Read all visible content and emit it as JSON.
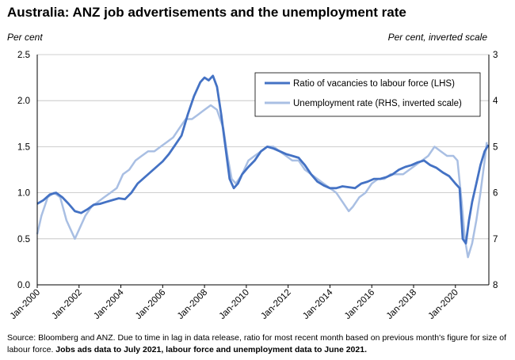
{
  "title": "Australia: ANZ job advertisements and the unemployment rate",
  "footnote": {
    "plain": "Source: Bloomberg and ANZ.  Due to time in lag in data release, ratio for most recent month based on previous month's figure for size of labour force. ",
    "bold": "Jobs ads data to July 2021, labour force and unemployment data to June 2021."
  },
  "chart_data": {
    "type": "line",
    "left_axis": {
      "unit_label": "Per cent",
      "min": 0.0,
      "max": 2.5,
      "ticks": [
        "0.0",
        "0.5",
        "1.0",
        "1.5",
        "2.0",
        "2.5"
      ]
    },
    "right_axis": {
      "unit_label": "Per cent, inverted scale",
      "min": 3,
      "max": 8,
      "inverted": true,
      "ticks": [
        "3",
        "4",
        "5",
        "6",
        "7",
        "8"
      ]
    },
    "x_axis": {
      "ticks": [
        "Jan-2000",
        "Jan-2002",
        "Jan-2004",
        "Jan-2006",
        "Jan-2008",
        "Jan-2010",
        "Jan-2012",
        "Jan-2014",
        "Jan-2016",
        "Jan-2018",
        "Jan-2020"
      ],
      "start_year": 2000,
      "end_year": 2021.6
    },
    "grid": "horizontal",
    "legend_position": "top-right",
    "colors": {
      "vacancies": "#4472c4",
      "unemployment": "#a9bfe3"
    },
    "series": [
      {
        "name": "Ratio of vacancies to labour force (LHS)",
        "axis": "left",
        "x": [
          2000.0,
          2000.3,
          2000.6,
          2000.9,
          2001.2,
          2001.5,
          2001.8,
          2002.1,
          2002.4,
          2002.7,
          2003.0,
          2003.3,
          2003.6,
          2003.9,
          2004.2,
          2004.5,
          2004.8,
          2005.1,
          2005.4,
          2005.7,
          2006.0,
          2006.3,
          2006.6,
          2006.9,
          2007.2,
          2007.5,
          2007.8,
          2008.0,
          2008.2,
          2008.4,
          2008.6,
          2008.8,
          2009.0,
          2009.2,
          2009.4,
          2009.6,
          2009.8,
          2010.1,
          2010.4,
          2010.7,
          2011.0,
          2011.3,
          2011.6,
          2011.9,
          2012.2,
          2012.5,
          2012.8,
          2013.1,
          2013.4,
          2013.7,
          2014.0,
          2014.3,
          2014.6,
          2014.9,
          2015.2,
          2015.5,
          2015.8,
          2016.1,
          2016.4,
          2016.7,
          2017.0,
          2017.3,
          2017.6,
          2017.9,
          2018.2,
          2018.5,
          2018.8,
          2019.1,
          2019.4,
          2019.7,
          2020.0,
          2020.2,
          2020.35,
          2020.5,
          2020.65,
          2020.8,
          2021.0,
          2021.2,
          2021.4,
          2021.58
        ],
        "y": [
          0.88,
          0.92,
          0.98,
          1.0,
          0.95,
          0.88,
          0.8,
          0.78,
          0.82,
          0.87,
          0.88,
          0.9,
          0.92,
          0.94,
          0.93,
          1.0,
          1.1,
          1.16,
          1.22,
          1.28,
          1.34,
          1.42,
          1.52,
          1.62,
          1.85,
          2.05,
          2.2,
          2.25,
          2.22,
          2.27,
          2.15,
          1.85,
          1.5,
          1.15,
          1.05,
          1.1,
          1.2,
          1.28,
          1.35,
          1.45,
          1.5,
          1.48,
          1.45,
          1.42,
          1.4,
          1.38,
          1.3,
          1.2,
          1.12,
          1.08,
          1.05,
          1.05,
          1.07,
          1.06,
          1.05,
          1.1,
          1.12,
          1.15,
          1.15,
          1.17,
          1.2,
          1.25,
          1.28,
          1.3,
          1.33,
          1.35,
          1.3,
          1.27,
          1.22,
          1.18,
          1.1,
          1.05,
          0.5,
          0.45,
          0.7,
          0.9,
          1.1,
          1.3,
          1.45,
          1.52
        ]
      },
      {
        "name": "Unemployment rate (RHS, inverted scale)",
        "axis": "right",
        "x": [
          2000.0,
          2000.2,
          2000.5,
          2000.8,
          2001.1,
          2001.4,
          2001.6,
          2001.8,
          2002.0,
          2002.3,
          2002.6,
          2002.9,
          2003.2,
          2003.5,
          2003.8,
          2004.1,
          2004.4,
          2004.7,
          2005.0,
          2005.3,
          2005.6,
          2005.9,
          2006.2,
          2006.5,
          2006.8,
          2007.1,
          2007.4,
          2007.7,
          2008.0,
          2008.3,
          2008.6,
          2008.9,
          2009.1,
          2009.3,
          2009.5,
          2009.8,
          2010.1,
          2010.4,
          2010.7,
          2011.0,
          2011.3,
          2011.6,
          2011.9,
          2012.2,
          2012.5,
          2012.8,
          2013.1,
          2013.4,
          2013.7,
          2014.0,
          2014.3,
          2014.6,
          2014.9,
          2015.1,
          2015.4,
          2015.7,
          2016.0,
          2016.3,
          2016.6,
          2016.9,
          2017.2,
          2017.5,
          2017.8,
          2018.1,
          2018.4,
          2018.7,
          2019.0,
          2019.3,
          2019.6,
          2019.9,
          2020.1,
          2020.3,
          2020.45,
          2020.6,
          2020.8,
          2021.0,
          2021.2,
          2021.4,
          2021.5
        ],
        "y": [
          6.9,
          6.5,
          6.1,
          6.0,
          6.1,
          6.6,
          6.8,
          7.0,
          6.8,
          6.5,
          6.3,
          6.2,
          6.1,
          6.0,
          5.9,
          5.6,
          5.5,
          5.3,
          5.2,
          5.1,
          5.1,
          5.0,
          4.9,
          4.8,
          4.6,
          4.4,
          4.4,
          4.3,
          4.2,
          4.1,
          4.2,
          4.6,
          5.2,
          5.7,
          5.8,
          5.6,
          5.3,
          5.2,
          5.1,
          5.0,
          5.0,
          5.1,
          5.2,
          5.3,
          5.3,
          5.5,
          5.6,
          5.7,
          5.8,
          5.9,
          6.0,
          6.2,
          6.4,
          6.3,
          6.1,
          6.0,
          5.8,
          5.7,
          5.7,
          5.6,
          5.6,
          5.6,
          5.5,
          5.4,
          5.3,
          5.2,
          5.0,
          5.1,
          5.2,
          5.2,
          5.3,
          6.2,
          7.0,
          7.4,
          7.1,
          6.6,
          6.0,
          5.3,
          4.9
        ]
      }
    ]
  }
}
